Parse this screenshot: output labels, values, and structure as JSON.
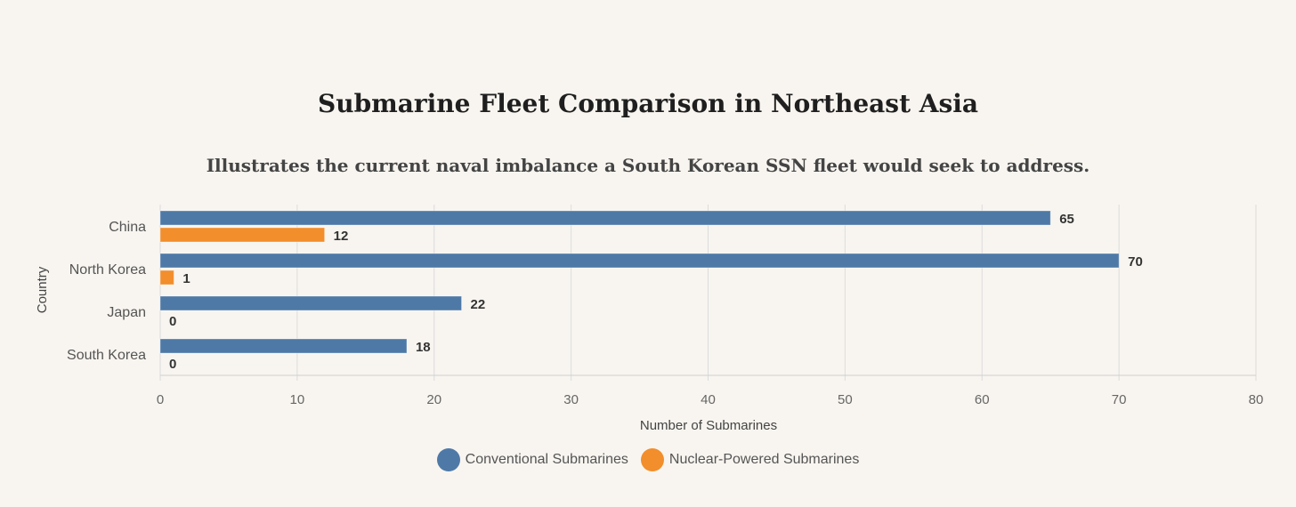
{
  "chart_data": {
    "type": "bar",
    "orientation": "horizontal",
    "title": "Submarine Fleet Comparison in Northeast Asia",
    "subtitle": "Illustrates the current naval imbalance a South Korean SSN fleet would seek to address.",
    "xlabel": "Number of Submarines",
    "ylabel": "Country",
    "xlim": [
      0,
      80
    ],
    "xticks": [
      0,
      10,
      20,
      30,
      40,
      50,
      60,
      70,
      80
    ],
    "grid": true,
    "legend_position": "bottom",
    "categories": [
      "China",
      "North Korea",
      "Japan",
      "South Korea"
    ],
    "series": [
      {
        "name": "Conventional Submarines",
        "color": "#4e79a7",
        "values": [
          65,
          70,
          22,
          18
        ]
      },
      {
        "name": "Nuclear-Powered Submarines",
        "color": "#f28e2b",
        "values": [
          12,
          1,
          0,
          0
        ]
      }
    ]
  }
}
